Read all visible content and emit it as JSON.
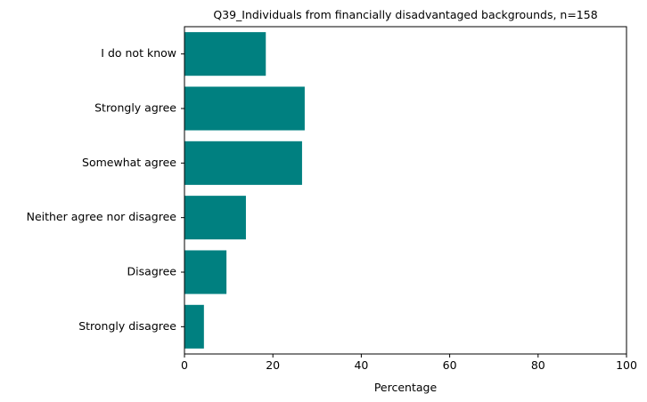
{
  "chart_data": {
    "type": "bar",
    "orientation": "horizontal",
    "title": "Q39_Individuals from financially disadvantaged backgrounds, n=158",
    "xlabel": "Percentage",
    "ylabel": "",
    "xlim": [
      0,
      100
    ],
    "xticks": [
      0,
      20,
      40,
      60,
      80,
      100
    ],
    "categories": [
      "I do not know",
      "Strongly agree",
      "Somewhat agree",
      "Neither agree nor disagree",
      "Disagree",
      "Strongly disagree"
    ],
    "values": [
      18.4,
      27.2,
      26.6,
      13.9,
      9.5,
      4.4
    ],
    "bar_color": "#008080",
    "grid": false,
    "legend": "none"
  }
}
